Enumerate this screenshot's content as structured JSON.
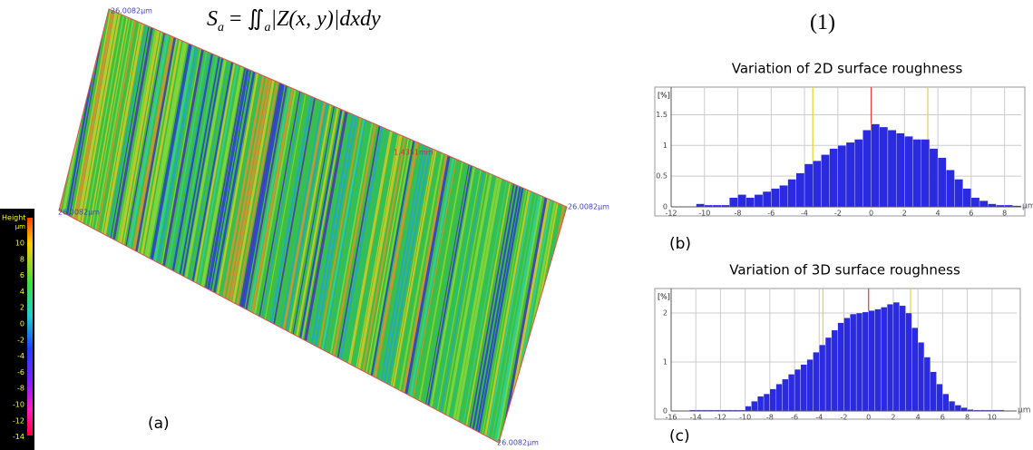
{
  "equation": {
    "lhs": "S",
    "lhs_sub": "a",
    "op": "= ∬",
    "int_sub": "a",
    "rhs": "|Z(x, y)|dxdy",
    "number": "(1)"
  },
  "colorbar": {
    "title": "Height",
    "unit": "µm",
    "labels": [
      "10",
      "8",
      "6",
      "4",
      "2",
      "0",
      "-2",
      "-4",
      "-6",
      "-8",
      "-10",
      "-12",
      "-14"
    ]
  },
  "surface_labels": [
    "26.0082µm",
    "1.4351mm",
    "26.0082µm",
    "26.0082µm",
    "26.0082µm"
  ],
  "panel_labels": [
    "(a)",
    "(b)",
    "(c)"
  ],
  "chart_data": [
    {
      "type": "histogram",
      "title": "Variation of 2D surface roughness",
      "ylabel": "[%]",
      "xlabel": "µm",
      "color": "#2a2ae0",
      "bins": [
        -10.5,
        -10,
        -9.5,
        -9,
        -8.5,
        -8,
        -7.5,
        -7,
        -6.5,
        -6,
        -5.5,
        -5,
        -4.5,
        -4,
        -3.5,
        -3,
        -2.5,
        -2,
        -1.5,
        -1,
        -0.5,
        0,
        0.5,
        1,
        1.5,
        2,
        2.5,
        3,
        3.5,
        4,
        4.5,
        5,
        5.5,
        6,
        6.5,
        7,
        7.5,
        8,
        8.5,
        9
      ],
      "values": [
        0.05,
        0.03,
        0.03,
        0.03,
        0.15,
        0.2,
        0.15,
        0.2,
        0.25,
        0.3,
        0.35,
        0.45,
        0.55,
        0.7,
        0.75,
        0.85,
        0.95,
        1.0,
        1.05,
        1.1,
        1.25,
        1.35,
        1.3,
        1.25,
        1.2,
        1.15,
        1.1,
        1.1,
        0.95,
        0.8,
        0.6,
        0.45,
        0.3,
        0.15,
        0.1,
        0.05,
        0.03,
        0.03,
        0.02
      ],
      "xlim": [
        -12,
        9
      ],
      "xticks": [
        -12,
        -10,
        -8,
        -6,
        -4,
        -2,
        0,
        2,
        4,
        6,
        8
      ],
      "ylim": [
        0,
        1.95
      ],
      "yticks": [
        0,
        0.5,
        1,
        1.5
      ],
      "grid": true,
      "reference_lines": [
        {
          "value": -3.5,
          "color": "#e8d23a"
        },
        {
          "value": 0,
          "color": "#e04040"
        },
        {
          "value": 3.4,
          "color": "#e8d23a"
        }
      ]
    },
    {
      "type": "histogram",
      "title": "Variation of 3D surface roughness",
      "ylabel": "[%]",
      "xlabel": "µm",
      "color": "#2a2ae0",
      "bins": [
        -14.5,
        -14,
        -13.5,
        -13,
        -12.5,
        -12,
        -11.5,
        -11,
        -10.5,
        -10,
        -9.5,
        -9,
        -8.5,
        -8,
        -7.5,
        -7,
        -6.5,
        -6,
        -5.5,
        -5,
        -4.5,
        -4,
        -3.5,
        -3,
        -2.5,
        -2,
        -1.5,
        -1,
        -0.5,
        0,
        0.5,
        1,
        1.5,
        2,
        2.5,
        3,
        3.5,
        4,
        4.5,
        5,
        5.5,
        6,
        6.5,
        7,
        7.5,
        8,
        8.5,
        9,
        9.5,
        10,
        10.5,
        11
      ],
      "values": [
        0.02,
        0.02,
        0.02,
        0.02,
        0.02,
        0.02,
        0.02,
        0.02,
        0.02,
        0.1,
        0.2,
        0.3,
        0.35,
        0.45,
        0.55,
        0.65,
        0.75,
        0.85,
        0.95,
        1.05,
        1.2,
        1.35,
        1.5,
        1.65,
        1.8,
        1.9,
        1.98,
        2.0,
        2.02,
        2.05,
        2.08,
        2.12,
        2.18,
        2.22,
        2.15,
        2.0,
        1.7,
        1.4,
        1.1,
        0.8,
        0.55,
        0.35,
        0.2,
        0.12,
        0.07,
        0.03,
        0.02,
        0.02,
        0.02,
        0.02,
        0.02
      ],
      "xlim": [
        -16,
        12
      ],
      "xticks": [
        -16,
        -14,
        -12,
        -10,
        -8,
        -6,
        -4,
        -2,
        0,
        2,
        4,
        6,
        8,
        10
      ],
      "ylim": [
        0,
        2.5
      ],
      "yticks": [
        0,
        1,
        2
      ],
      "grid": true,
      "reference_lines": [
        {
          "value": -3.7,
          "color": "#e8d23a"
        },
        {
          "value": 0,
          "color": "#e04040"
        },
        {
          "value": 3.4,
          "color": "#e8d23a"
        }
      ]
    }
  ]
}
